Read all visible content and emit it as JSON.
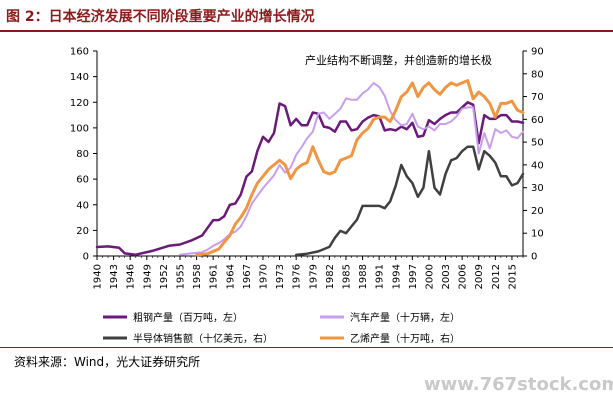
{
  "figure": {
    "title": "图 2：日本经济发展不同阶段重要产业的增长情况",
    "source": "资料来源：Wind，光大证券研究所",
    "watermark": "www.767stock.com"
  },
  "chart_data": {
    "type": "line",
    "annotation": "产业结构不断调整，并创造新的增长极",
    "x_ticks": [
      "1940",
      "1943",
      "1946",
      "1949",
      "1952",
      "1955",
      "1958",
      "1961",
      "1964",
      "1967",
      "1970",
      "1973",
      "1976",
      "1979",
      "1982",
      "1985",
      "1988",
      "1991",
      "1994",
      "1997",
      "2000",
      "2003",
      "2006",
      "2009",
      "2012",
      "2015"
    ],
    "xlim": [
      1940,
      2017
    ],
    "y_left": {
      "ylim": [
        0,
        160
      ],
      "ticks": [
        0,
        20,
        40,
        60,
        80,
        100,
        120,
        140,
        160
      ]
    },
    "y_right": {
      "ylim": [
        0,
        90
      ],
      "ticks": [
        0,
        10,
        20,
        30,
        40,
        50,
        60,
        70,
        80,
        90
      ]
    },
    "grid": false,
    "legend_position": "bottom",
    "series": [
      {
        "name": "粗钢产量（百万吨，左）",
        "color": "#6b1a7a",
        "axis": "left",
        "width": 2.5,
        "points": [
          [
            1940,
            7
          ],
          [
            1942,
            7.5
          ],
          [
            1944,
            6.5
          ],
          [
            1945,
            2
          ],
          [
            1947,
            1
          ],
          [
            1950,
            4
          ],
          [
            1953,
            8
          ],
          [
            1955,
            9
          ],
          [
            1957,
            12
          ],
          [
            1959,
            16
          ],
          [
            1960,
            22
          ],
          [
            1961,
            28
          ],
          [
            1962,
            28
          ],
          [
            1963,
            31
          ],
          [
            1964,
            40
          ],
          [
            1965,
            41
          ],
          [
            1966,
            48
          ],
          [
            1967,
            62
          ],
          [
            1968,
            66
          ],
          [
            1969,
            82
          ],
          [
            1970,
            93
          ],
          [
            1971,
            89
          ],
          [
            1972,
            96
          ],
          [
            1973,
            119
          ],
          [
            1974,
            117
          ],
          [
            1975,
            102
          ],
          [
            1976,
            107
          ],
          [
            1977,
            102
          ],
          [
            1978,
            102
          ],
          [
            1979,
            112
          ],
          [
            1980,
            111
          ],
          [
            1981,
            101
          ],
          [
            1982,
            100
          ],
          [
            1983,
            97
          ],
          [
            1984,
            105
          ],
          [
            1985,
            105
          ],
          [
            1986,
            98
          ],
          [
            1987,
            99
          ],
          [
            1988,
            105
          ],
          [
            1989,
            108
          ],
          [
            1990,
            110
          ],
          [
            1991,
            109
          ],
          [
            1992,
            98
          ],
          [
            1993,
            99
          ],
          [
            1994,
            98
          ],
          [
            1995,
            101
          ],
          [
            1996,
            99
          ],
          [
            1997,
            104
          ],
          [
            1998,
            93
          ],
          [
            1999,
            94
          ],
          [
            2000,
            106
          ],
          [
            2001,
            103
          ],
          [
            2002,
            107
          ],
          [
            2003,
            110
          ],
          [
            2004,
            112
          ],
          [
            2005,
            112
          ],
          [
            2006,
            116
          ],
          [
            2007,
            120
          ],
          [
            2008,
            118
          ],
          [
            2009,
            88
          ],
          [
            2010,
            110
          ],
          [
            2011,
            107
          ],
          [
            2012,
            107
          ],
          [
            2013,
            110
          ],
          [
            2014,
            110
          ],
          [
            2015,
            105
          ],
          [
            2016,
            105
          ],
          [
            2017,
            104
          ]
        ]
      },
      {
        "name": "汽车产量（十万辆，左）",
        "color": "#c79ef0",
        "axis": "left",
        "width": 2,
        "points": [
          [
            1955,
            1
          ],
          [
            1957,
            2
          ],
          [
            1959,
            3
          ],
          [
            1960,
            5
          ],
          [
            1961,
            8
          ],
          [
            1962,
            10
          ],
          [
            1963,
            13
          ],
          [
            1964,
            17
          ],
          [
            1965,
            19
          ],
          [
            1966,
            23
          ],
          [
            1967,
            31
          ],
          [
            1968,
            41
          ],
          [
            1969,
            47
          ],
          [
            1970,
            53
          ],
          [
            1971,
            58
          ],
          [
            1972,
            63
          ],
          [
            1973,
            71
          ],
          [
            1974,
            65
          ],
          [
            1975,
            69
          ],
          [
            1976,
            79
          ],
          [
            1977,
            85
          ],
          [
            1978,
            92
          ],
          [
            1979,
            97
          ],
          [
            1980,
            111
          ],
          [
            1981,
            112
          ],
          [
            1982,
            107
          ],
          [
            1983,
            111
          ],
          [
            1984,
            115
          ],
          [
            1985,
            123
          ],
          [
            1986,
            122
          ],
          [
            1987,
            122
          ],
          [
            1988,
            127
          ],
          [
            1989,
            130
          ],
          [
            1990,
            135
          ],
          [
            1991,
            132
          ],
          [
            1992,
            125
          ],
          [
            1993,
            113
          ],
          [
            1994,
            106
          ],
          [
            1995,
            102
          ],
          [
            1996,
            103
          ],
          [
            1997,
            111
          ],
          [
            1998,
            101
          ],
          [
            1999,
            99
          ],
          [
            2000,
            101
          ],
          [
            2001,
            98
          ],
          [
            2002,
            103
          ],
          [
            2003,
            103
          ],
          [
            2004,
            105
          ],
          [
            2005,
            109
          ],
          [
            2006,
            115
          ],
          [
            2007,
            116
          ],
          [
            2008,
            116
          ],
          [
            2009,
            80
          ],
          [
            2010,
            96
          ],
          [
            2011,
            84
          ],
          [
            2012,
            99
          ],
          [
            2013,
            96
          ],
          [
            2014,
            98
          ],
          [
            2015,
            93
          ],
          [
            2016,
            92
          ],
          [
            2017,
            97
          ]
        ]
      },
      {
        "name": "半导体销售额（十亿美元，右）",
        "color": "#404040",
        "axis": "right",
        "width": 2.5,
        "points": [
          [
            1976,
            0.5
          ],
          [
            1978,
            1
          ],
          [
            1980,
            2
          ],
          [
            1982,
            4
          ],
          [
            1983,
            8
          ],
          [
            1984,
            11
          ],
          [
            1985,
            10
          ],
          [
            1986,
            13
          ],
          [
            1987,
            16
          ],
          [
            1988,
            22
          ],
          [
            1989,
            22
          ],
          [
            1990,
            22
          ],
          [
            1991,
            22
          ],
          [
            1992,
            21
          ],
          [
            1993,
            24
          ],
          [
            1994,
            31
          ],
          [
            1995,
            40
          ],
          [
            1996,
            35
          ],
          [
            1997,
            32
          ],
          [
            1998,
            26
          ],
          [
            1999,
            30
          ],
          [
            2000,
            46
          ],
          [
            2001,
            30
          ],
          [
            2002,
            27
          ],
          [
            2003,
            36
          ],
          [
            2004,
            42
          ],
          [
            2005,
            43
          ],
          [
            2006,
            46
          ],
          [
            2007,
            48
          ],
          [
            2008,
            48
          ],
          [
            2009,
            38
          ],
          [
            2010,
            46
          ],
          [
            2011,
            44
          ],
          [
            2012,
            41
          ],
          [
            2013,
            35
          ],
          [
            2014,
            35
          ],
          [
            2015,
            31
          ],
          [
            2016,
            32
          ],
          [
            2017,
            36
          ]
        ]
      },
      {
        "name": "乙烯产量（十万吨，右）",
        "color": "#f09642",
        "axis": "right",
        "width": 3,
        "points": [
          [
            1958,
            0.5
          ],
          [
            1960,
            1
          ],
          [
            1962,
            3
          ],
          [
            1963,
            6
          ],
          [
            1964,
            9
          ],
          [
            1965,
            14
          ],
          [
            1966,
            17
          ],
          [
            1967,
            21
          ],
          [
            1968,
            27
          ],
          [
            1969,
            32
          ],
          [
            1970,
            35
          ],
          [
            1971,
            38
          ],
          [
            1972,
            40
          ],
          [
            1973,
            42
          ],
          [
            1974,
            40
          ],
          [
            1975,
            34
          ],
          [
            1976,
            38
          ],
          [
            1977,
            40
          ],
          [
            1978,
            41
          ],
          [
            1979,
            48
          ],
          [
            1980,
            42
          ],
          [
            1981,
            37
          ],
          [
            1982,
            36
          ],
          [
            1983,
            37
          ],
          [
            1984,
            42
          ],
          [
            1985,
            43
          ],
          [
            1986,
            44
          ],
          [
            1987,
            51
          ],
          [
            1988,
            54
          ],
          [
            1989,
            56
          ],
          [
            1990,
            60
          ],
          [
            1991,
            61
          ],
          [
            1992,
            61
          ],
          [
            1993,
            59
          ],
          [
            1994,
            64
          ],
          [
            1995,
            70
          ],
          [
            1996,
            72
          ],
          [
            1997,
            76
          ],
          [
            1998,
            70
          ],
          [
            1999,
            74
          ],
          [
            2000,
            76
          ],
          [
            2001,
            73
          ],
          [
            2002,
            71
          ],
          [
            2003,
            74
          ],
          [
            2004,
            76
          ],
          [
            2005,
            75
          ],
          [
            2006,
            76
          ],
          [
            2007,
            77
          ],
          [
            2008,
            69
          ],
          [
            2009,
            72
          ],
          [
            2010,
            70
          ],
          [
            2011,
            67
          ],
          [
            2012,
            61
          ],
          [
            2013,
            67
          ],
          [
            2014,
            67
          ],
          [
            2015,
            68
          ],
          [
            2016,
            64
          ],
          [
            2017,
            63
          ]
        ]
      }
    ]
  }
}
